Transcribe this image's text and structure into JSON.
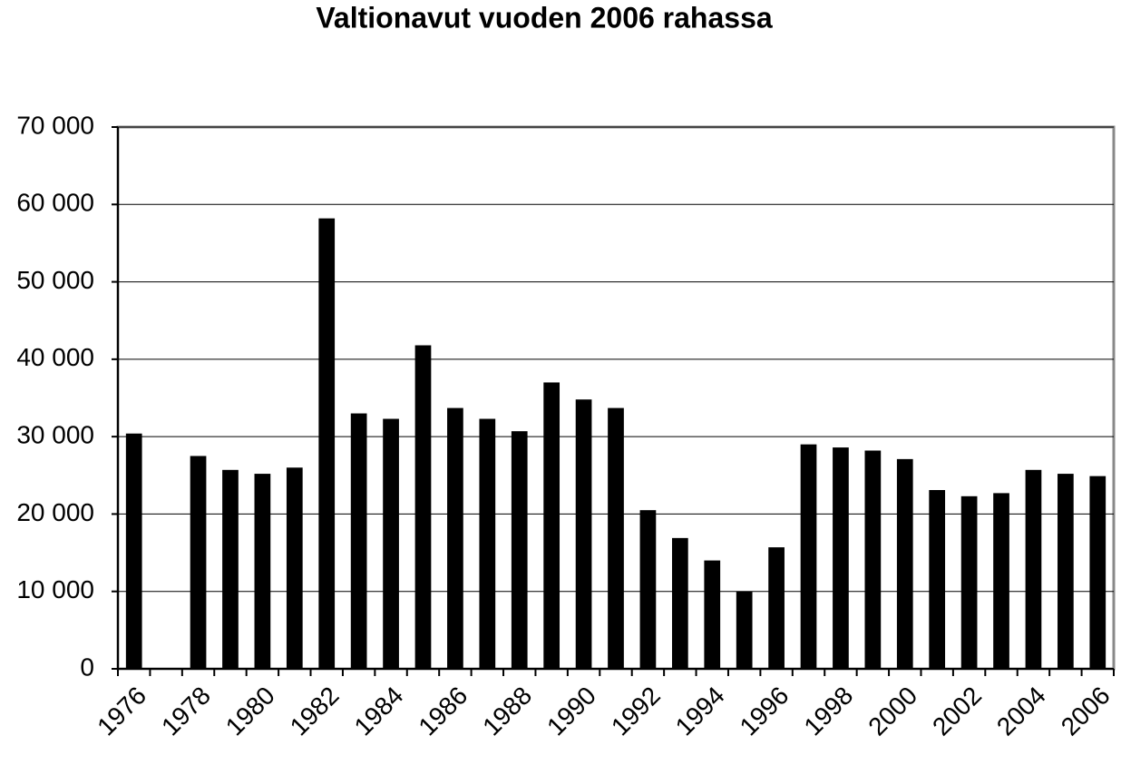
{
  "chart_data": {
    "type": "bar",
    "title": "Valtionavut vuoden 2006 rahassa",
    "categories": [
      "1976",
      null,
      "1978",
      null,
      "1980",
      null,
      "1982",
      null,
      "1984",
      null,
      "1986",
      null,
      "1988",
      null,
      "1990",
      null,
      "1992",
      null,
      "1994",
      null,
      "1996",
      null,
      "1998",
      null,
      "2000",
      null,
      "2002",
      null,
      "2004",
      null,
      "2006"
    ],
    "values": [
      30400,
      null,
      27500,
      25700,
      25200,
      26000,
      58200,
      33000,
      32300,
      41800,
      33700,
      32300,
      30700,
      37000,
      34800,
      33700,
      20500,
      16900,
      14000,
      10000,
      15700,
      29000,
      28600,
      28200,
      27100,
      23100,
      22300,
      22700,
      25700,
      25200,
      24900
    ],
    "color": "#000000",
    "ylim": [
      0,
      70000
    ],
    "yticks": [
      0,
      {
        "value": 10000,
        "label": "10 000"
      },
      {
        "value": 20000,
        "label": "20 000"
      },
      {
        "value": 30000,
        "label": "30 000"
      },
      {
        "value": 40000,
        "label": "40 000"
      },
      {
        "value": 50000,
        "label": "50 000"
      },
      {
        "value": 60000,
        "label": "60 000"
      },
      {
        "value": 70000,
        "label": "70 000"
      }
    ],
    "grid": true
  }
}
